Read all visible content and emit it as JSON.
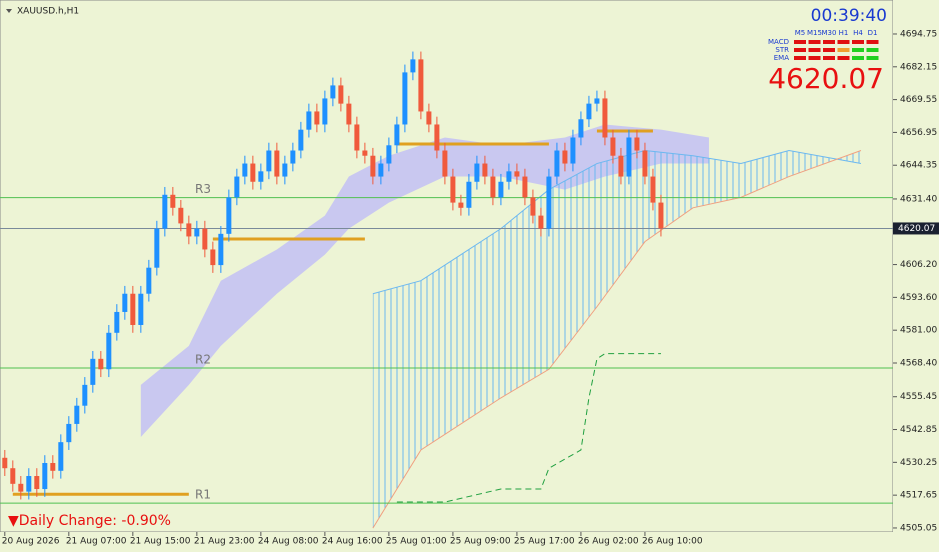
{
  "chart_data": {
    "type": "candlestick",
    "title": "XAUUSD.h,H1",
    "clock": "00:39:40",
    "current_price": 4620.07,
    "daily_change": "▼Daily Change: -0.90%",
    "up_color": "#1e90ff",
    "down_color": "#f05a3c",
    "background": "#edf4d5",
    "xlim": [
      -0.6,
      111.0
    ],
    "ylim": [
      4503.5,
      4707.8
    ],
    "xticks": [
      {
        "value": 0,
        "label": "20 Aug 2026"
      },
      {
        "value": 8,
        "label": "21 Aug 07:00"
      },
      {
        "value": 16,
        "label": "21 Aug 15:00"
      },
      {
        "value": 24,
        "label": "21 Aug 23:00"
      },
      {
        "value": 32,
        "label": "24 Aug 08:00"
      },
      {
        "value": 40,
        "label": "24 Aug 16:00"
      },
      {
        "value": 48,
        "label": "25 Aug 01:00"
      },
      {
        "value": 56,
        "label": "25 Aug 09:00"
      },
      {
        "value": 64,
        "label": "25 Aug 17:00"
      },
      {
        "value": 72,
        "label": "26 Aug 02:00"
      },
      {
        "value": 80,
        "label": "26 Aug 10:00"
      }
    ],
    "yticks": [
      4694.75,
      4682.15,
      4669.55,
      4656.95,
      4644.35,
      {
        "value": 4631.4,
        "label": "4631.40"
      },
      {
        "value": 4606.2,
        "label": "4606.20"
      },
      {
        "value": 4593.6,
        "label": "4593.60"
      },
      {
        "value": 4581,
        "label": "4581.00"
      },
      {
        "value": 4568.4,
        "label": "4568.40"
      },
      4555.45,
      4542.85,
      4530.25,
      4517.65,
      4505.05
    ],
    "open": [
      4532,
      4528,
      4522,
      4519,
      4525,
      4520,
      4530,
      4527,
      4538,
      4545,
      4552,
      4560,
      4570,
      4566,
      4580,
      4588,
      4595,
      4583,
      4595,
      4605,
      4620,
      4633,
      4628,
      4622,
      4617,
      4620,
      4612,
      4606,
      4618,
      4632,
      4640,
      4645,
      4638,
      4642,
      4650,
      4640,
      4645,
      4650,
      4658,
      4665,
      4660,
      4670,
      4675,
      4668,
      4660,
      4650,
      4648,
      4640,
      4645,
      4652,
      4660,
      4680,
      4685,
      4665,
      4660,
      4650,
      4640,
      4630,
      4628,
      4638,
      4645,
      4640,
      4632,
      4638,
      4642,
      4640,
      4632,
      4625,
      4620,
      4640,
      4650,
      4645,
      4655,
      4662,
      4668,
      4670,
      4655,
      4648,
      4640,
      4655,
      4650,
      4640,
      4630
    ],
    "high": [
      4535,
      4531,
      4525,
      4528,
      4528,
      4533,
      4533,
      4541,
      4548,
      4555,
      4563,
      4573,
      4573,
      4583,
      4591,
      4598,
      4598,
      4598,
      4608,
      4623,
      4636,
      4636,
      4631,
      4625,
      4623,
      4623,
      4615,
      4621,
      4635,
      4643,
      4648,
      4648,
      4645,
      4653,
      4653,
      4648,
      4653,
      4661,
      4668,
      4668,
      4673,
      4678,
      4678,
      4671,
      4663,
      4653,
      4651,
      4648,
      4655,
      4663,
      4683,
      4688,
      4688,
      4668,
      4663,
      4653,
      4643,
      4633,
      4641,
      4648,
      4648,
      4643,
      4641,
      4645,
      4645,
      4643,
      4635,
      4628,
      4643,
      4653,
      4653,
      4658,
      4665,
      4671,
      4673,
      4673,
      4658,
      4651,
      4658,
      4658,
      4653,
      4643,
      4633
    ],
    "low": [
      4525,
      4519,
      4516,
      4516,
      4517,
      4517,
      4524,
      4524,
      4535,
      4542,
      4549,
      4557,
      4563,
      4563,
      4577,
      4585,
      4580,
      4580,
      4592,
      4602,
      4617,
      4625,
      4619,
      4614,
      4614,
      4609,
      4603,
      4603,
      4615,
      4629,
      4637,
      4635,
      4635,
      4639,
      4637,
      4637,
      4642,
      4647,
      4655,
      4657,
      4657,
      4667,
      4665,
      4657,
      4647,
      4645,
      4637,
      4637,
      4642,
      4649,
      4657,
      4677,
      4662,
      4657,
      4647,
      4637,
      4627,
      4625,
      4625,
      4635,
      4637,
      4629,
      4629,
      4635,
      4637,
      4629,
      4622,
      4617,
      4617,
      4637,
      4642,
      4642,
      4652,
      4659,
      4665,
      4652,
      4645,
      4637,
      4637,
      4647,
      4637,
      4627,
      4617
    ],
    "close": [
      4528,
      4522,
      4519,
      4525,
      4520,
      4530,
      4527,
      4538,
      4545,
      4552,
      4560,
      4570,
      4566,
      4580,
      4588,
      4595,
      4583,
      4595,
      4605,
      4620,
      4633,
      4628,
      4622,
      4617,
      4620,
      4612,
      4606,
      4618,
      4632,
      4640,
      4645,
      4638,
      4642,
      4650,
      4640,
      4645,
      4650,
      4658,
      4665,
      4660,
      4670,
      4675,
      4668,
      4660,
      4650,
      4648,
      4640,
      4645,
      4652,
      4660,
      4680,
      4685,
      4665,
      4660,
      4650,
      4640,
      4630,
      4628,
      4638,
      4645,
      4640,
      4632,
      4638,
      4642,
      4640,
      4632,
      4625,
      4620,
      4640,
      4650,
      4645,
      4655,
      4662,
      4668,
      4670,
      4655,
      4648,
      4640,
      4655,
      4650,
      4640,
      4630,
      4620.07
    ],
    "band": {
      "color": "#c9c8f0",
      "x": [
        17,
        23,
        27,
        34,
        40,
        43,
        48,
        55,
        62,
        70,
        75,
        82,
        88
      ],
      "upper": [
        4560,
        4575,
        4600,
        4612,
        4625,
        4640,
        4648,
        4655,
        4652,
        4655,
        4660,
        4658,
        4655
      ],
      "lower": [
        4540,
        4560,
        4575,
        4595,
        4610,
        4620,
        4630,
        4640,
        4640,
        4635,
        4640,
        4645,
        4645
      ]
    },
    "cloud": {
      "x": [
        46,
        52,
        57,
        62,
        68,
        74,
        80,
        86,
        92,
        98,
        107
      ],
      "span_a": [
        4595,
        4600,
        4610,
        4620,
        4635,
        4645,
        4650,
        4648,
        4645,
        4650,
        4645
      ],
      "span_b": [
        4505,
        4535,
        4545,
        4555,
        4566,
        4590,
        4615,
        4628,
        4632,
        4640,
        4650
      ],
      "color_a": "#6cb8f0",
      "color_b": "#f0a080"
    },
    "signal_line": {
      "color": "#20a040",
      "x": [
        49,
        55,
        62,
        67,
        68,
        72,
        73,
        74,
        75,
        82
      ],
      "values": [
        4515,
        4515,
        4520,
        4520,
        4528,
        4535,
        4555,
        4570,
        4572,
        4572
      ]
    },
    "levels": [
      {
        "name": "R3",
        "value": 4631.9
      },
      {
        "name": "R2",
        "value": 4566.5
      },
      {
        "name": "R1",
        "value": 4514.6
      }
    ],
    "level_color": "#50c050",
    "orange_levels": [
      {
        "x": [
          1,
          23
        ],
        "value": 4518
      },
      {
        "x": [
          26,
          45
        ],
        "value": 4616
      },
      {
        "x": [
          49,
          68
        ],
        "value": 4652.5
      },
      {
        "x": [
          74,
          81
        ],
        "value": 4657.5
      }
    ],
    "orange_color": "#e0a020",
    "signal_matrix": {
      "columns": [
        "M5",
        "M15",
        "M30",
        "H1",
        "H4",
        "D1"
      ],
      "rows": [
        {
          "name": "MACD",
          "colors": [
            "#e01010",
            "#e01010",
            "#e01010",
            "#e01010",
            "#e01010",
            "#e01010"
          ]
        },
        {
          "name": "STR",
          "colors": [
            "#e01010",
            "#e01010",
            "#e01010",
            "#f0a030",
            "#20d020",
            "#20d020"
          ]
        },
        {
          "name": "EMA",
          "colors": [
            "#e01010",
            "#e01010",
            "#e01010",
            "#e01010",
            "#20d020",
            "#20d020"
          ]
        }
      ]
    }
  }
}
